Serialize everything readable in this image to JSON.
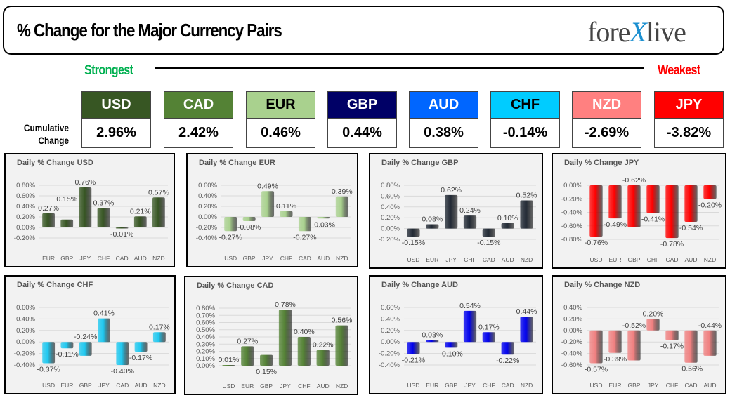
{
  "header": {
    "title": "% Change for the Major Currency Pairs",
    "logo": {
      "text_left": "fore",
      "text_x": "X",
      "text_right": "live"
    }
  },
  "scale": {
    "strongest": "Strongest",
    "weakest": "Weakest"
  },
  "cumulative": {
    "label_line1": "Cumulative",
    "label_line2": "Change",
    "currencies": [
      {
        "code": "USD",
        "value": "2.96%",
        "bg": "#375623",
        "fg": "#ffffff"
      },
      {
        "code": "CAD",
        "value": "2.42%",
        "bg": "#548235",
        "fg": "#ffffff"
      },
      {
        "code": "EUR",
        "value": "0.46%",
        "bg": "#a9d18e",
        "fg": "#000000"
      },
      {
        "code": "GBP",
        "value": "0.44%",
        "bg": "#000066",
        "fg": "#ffffff"
      },
      {
        "code": "AUD",
        "value": "0.38%",
        "bg": "#0066ff",
        "fg": "#ffffff"
      },
      {
        "code": "CHF",
        "value": "-0.14%",
        "bg": "#00ccff",
        "fg": "#000000"
      },
      {
        "code": "NZD",
        "value": "-2.69%",
        "bg": "#ff8080",
        "fg": "#ffffff"
      },
      {
        "code": "JPY",
        "value": "-3.82%",
        "bg": "#ff0000",
        "fg": "#ffffff"
      }
    ]
  },
  "chart_data": [
    {
      "type": "bar",
      "title": "Daily % Change USD",
      "color": "#375623",
      "categories": [
        "EUR",
        "GBP",
        "JPY",
        "CHF",
        "CAD",
        "AUD",
        "NZD"
      ],
      "values": [
        0.27,
        0.15,
        0.76,
        0.37,
        -0.01,
        0.21,
        0.57
      ],
      "ylim": [
        -0.2,
        0.8
      ],
      "ystep": 0.2,
      "grid": true
    },
    {
      "type": "bar",
      "title": "Daily % Change EUR",
      "color": "#a9d18e",
      "categories": [
        "USD",
        "GBP",
        "JPY",
        "CHF",
        "CAD",
        "AUD",
        "NZD"
      ],
      "values": [
        -0.27,
        -0.08,
        0.49,
        0.11,
        -0.27,
        -0.03,
        0.39
      ],
      "ylim": [
        -0.4,
        0.6
      ],
      "ystep": 0.2,
      "grid": true
    },
    {
      "type": "bar",
      "title": "Daily % Change GBP",
      "color": "#222a35",
      "categories": [
        "USD",
        "EUR",
        "JPY",
        "CHF",
        "CAD",
        "AUD",
        "NZD"
      ],
      "values": [
        -0.15,
        0.08,
        0.62,
        0.24,
        -0.15,
        0.1,
        0.52
      ],
      "ylim": [
        -0.2,
        0.8
      ],
      "ystep": 0.2,
      "grid": true
    },
    {
      "type": "bar",
      "title": "Daily % Change JPY",
      "color": "#ff0000",
      "categories": [
        "USD",
        "EUR",
        "GBP",
        "CHF",
        "CAD",
        "AUD",
        "NZD"
      ],
      "values": [
        -0.76,
        -0.49,
        -0.62,
        -0.41,
        -0.78,
        -0.54,
        -0.2
      ],
      "ylim": [
        -0.8,
        0
      ],
      "ystep": 0.2,
      "grid": true
    },
    {
      "type": "bar",
      "title": "Daily % Change CHF",
      "color": "#1ec8f0",
      "categories": [
        "USD",
        "EUR",
        "GBP",
        "JPY",
        "CAD",
        "AUD",
        "NZD"
      ],
      "values": [
        -0.37,
        -0.11,
        -0.24,
        0.41,
        -0.4,
        -0.17,
        0.17
      ],
      "ylim": [
        -0.4,
        0.6
      ],
      "ystep": 0.2,
      "grid": true
    },
    {
      "type": "bar",
      "title": "Daily % Change CAD",
      "color": "#548235",
      "categories": [
        "USD",
        "EUR",
        "GBP",
        "JPY",
        "CHF",
        "AUD",
        "NZD"
      ],
      "values": [
        0.01,
        0.27,
        0.15,
        0.78,
        0.4,
        0.22,
        0.56
      ],
      "ylim": [
        0,
        0.8
      ],
      "ystep": 0.1,
      "grid": true
    },
    {
      "type": "bar",
      "title": "Daily % Change AUD",
      "color": "#0000ee",
      "categories": [
        "USD",
        "EUR",
        "GBP",
        "JPY",
        "CHF",
        "CAD",
        "NZD"
      ],
      "values": [
        -0.21,
        0.03,
        -0.1,
        0.54,
        0.17,
        -0.22,
        0.44
      ],
      "ylim": [
        -0.4,
        0.6
      ],
      "ystep": 0.2,
      "grid": true
    },
    {
      "type": "bar",
      "title": "Daily % Change NZD",
      "color": "#f08080",
      "categories": [
        "USD",
        "EUR",
        "GBP",
        "JPY",
        "CHF",
        "CAD",
        "AUD"
      ],
      "values": [
        -0.57,
        -0.39,
        -0.52,
        0.2,
        -0.17,
        -0.56,
        -0.44
      ],
      "ylim": [
        -0.6,
        0.4
      ],
      "ystep": 0.2,
      "grid": true
    }
  ]
}
